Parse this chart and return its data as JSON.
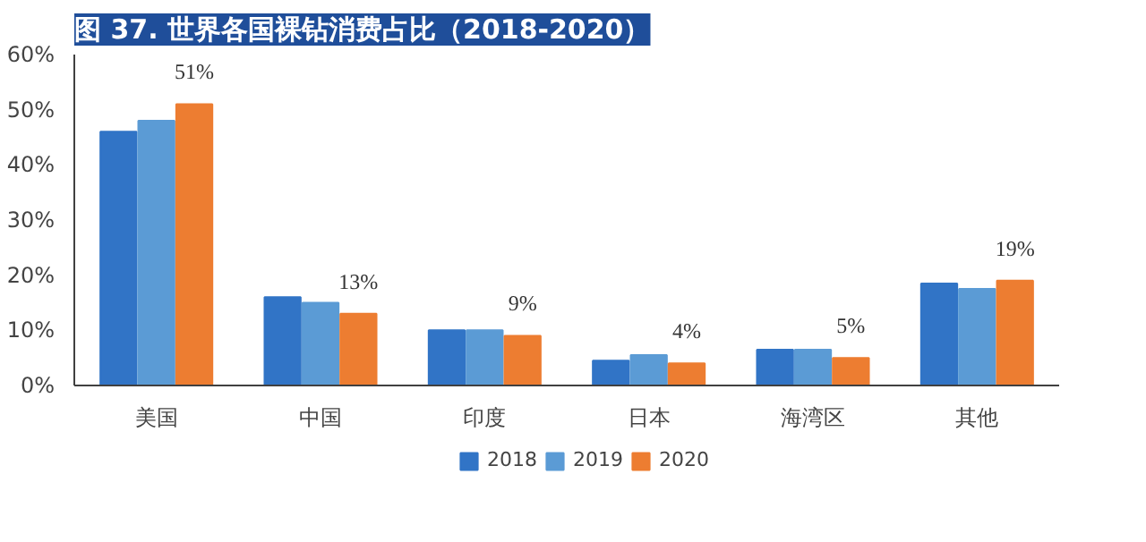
{
  "chart_data": {
    "type": "bar",
    "title": "图 37. 世界各国裸钻消费占比（2018-2020）",
    "categories": [
      "美国",
      "中国",
      "印度",
      "日本",
      "海湾区",
      "其他"
    ],
    "series": [
      {
        "name": "2018",
        "color": "#3174c6",
        "values": [
          46,
          16,
          10,
          4.5,
          6.5,
          18.5
        ]
      },
      {
        "name": "2019",
        "color": "#5b9bd5",
        "values": [
          48,
          15,
          10,
          5.5,
          6.5,
          17.5
        ]
      },
      {
        "name": "2020",
        "color": "#ed7d31",
        "values": [
          51,
          13,
          9,
          4,
          5,
          19
        ],
        "value_labels": [
          "51%",
          "13%",
          "9%",
          "4%",
          "5%",
          "19%"
        ]
      }
    ],
    "ylim": [
      0,
      60
    ],
    "yticks": [
      {
        "value": 0,
        "label": "0%"
      },
      {
        "value": 10,
        "label": "10%"
      },
      {
        "value": 20,
        "label": "20%"
      },
      {
        "value": 30,
        "label": "30%"
      },
      {
        "value": 40,
        "label": "40%"
      },
      {
        "value": 50,
        "label": "50%"
      },
      {
        "value": 60,
        "label": "60%"
      }
    ],
    "grid": false,
    "legend": "bottom"
  }
}
